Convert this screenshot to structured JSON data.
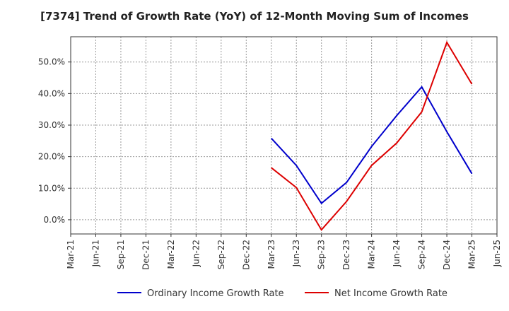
{
  "chart_data": {
    "type": "line",
    "title": "[7374]  Trend of Growth Rate (YoY) of 12-Month Moving Sum of Incomes",
    "xlabel": "",
    "ylabel": "",
    "x_tick_labels": [
      "Mar-21",
      "Jun-21",
      "Sep-21",
      "Dec-21",
      "Mar-22",
      "Jun-22",
      "Sep-22",
      "Dec-22",
      "Mar-23",
      "Jun-23",
      "Sep-23",
      "Dec-23",
      "Mar-24",
      "Jun-24",
      "Sep-24",
      "Dec-24",
      "Mar-25",
      "Jun-25"
    ],
    "y_ticks": [
      0,
      10,
      20,
      30,
      40,
      50
    ],
    "y_tick_labels": [
      "0.0%",
      "10.0%",
      "20.0%",
      "30.0%",
      "40.0%",
      "50.0%"
    ],
    "ylim": [
      -4.5,
      58
    ],
    "grid": true,
    "legend_position": "bottom",
    "series": [
      {
        "name": "Ordinary Income Growth Rate",
        "color": "#0000cc",
        "x": [
          "Mar-23",
          "Jun-23",
          "Sep-23",
          "Dec-23",
          "Mar-24",
          "Jun-24",
          "Sep-24",
          "Dec-24",
          "Mar-25"
        ],
        "values": [
          25.8,
          17.2,
          5.2,
          11.8,
          23.2,
          33.0,
          42.1,
          27.9,
          14.6
        ]
      },
      {
        "name": "Net Income Growth Rate",
        "color": "#dd0000",
        "x": [
          "Mar-23",
          "Jun-23",
          "Sep-23",
          "Dec-23",
          "Mar-24",
          "Jun-24",
          "Sep-24",
          "Dec-24",
          "Mar-25"
        ],
        "values": [
          16.5,
          10.2,
          -3.2,
          5.8,
          17.2,
          24.3,
          34.2,
          56.2,
          43.0
        ]
      }
    ]
  }
}
